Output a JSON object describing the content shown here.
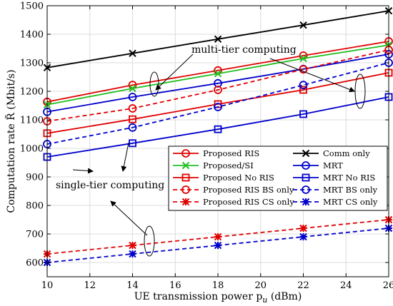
{
  "chart_data": {
    "type": "line",
    "title": "",
    "xlabel": "UE transmission power p",
    "xlabel_sub": "u",
    "xlabel_unit": " (dBm)",
    "ylabel": "Computation rate R̃ (Mbit/s)",
    "xlim": [
      10,
      26
    ],
    "ylim": [
      550,
      1500
    ],
    "x_ticks": [
      10,
      12,
      14,
      16,
      18,
      20,
      22,
      24,
      26
    ],
    "y_ticks": [
      600,
      700,
      800,
      900,
      1000,
      1100,
      1200,
      1300,
      1400,
      1500
    ],
    "grid": true,
    "legend_position": "lower-right-inside",
    "x": [
      10,
      14,
      18,
      22,
      26
    ],
    "series": [
      {
        "name": "Proposed RIS",
        "color": "#e00000",
        "dash": "solid",
        "marker": "circle",
        "values": [
          1163,
          1222,
          1273,
          1325,
          1375
        ]
      },
      {
        "name": "Comm only",
        "color": "#000000",
        "dash": "solid",
        "marker": "x",
        "values": [
          1283,
          1333,
          1383,
          1432,
          1482
        ]
      },
      {
        "name": "Proposed/SI",
        "color": "#22c022",
        "dash": "solid",
        "marker": "x",
        "values": [
          1153,
          1210,
          1262,
          1315,
          1362
        ]
      },
      {
        "name": "MRT",
        "color": "#0000cc",
        "dash": "solid",
        "marker": "circle",
        "values": [
          1128,
          1180,
          1228,
          1278,
          1330
        ]
      },
      {
        "name": "Proposed No RIS",
        "color": "#e00000",
        "dash": "solid",
        "marker": "square",
        "values": [
          1053,
          1102,
          1155,
          1205,
          1265
        ]
      },
      {
        "name": "MRT No RIS",
        "color": "#0000cc",
        "dash": "solid",
        "marker": "square",
        "values": [
          970,
          1018,
          1067,
          1120,
          1180
        ]
      },
      {
        "name": "Proposed RIS BS only",
        "color": "#e00000",
        "dash": "dashed",
        "marker": "circle",
        "values": [
          1095,
          1140,
          1205,
          1277,
          1345
        ]
      },
      {
        "name": "MRT BS only",
        "color": "#0000cc",
        "dash": "dashed",
        "marker": "circle",
        "values": [
          1015,
          1073,
          1145,
          1222,
          1300
        ]
      },
      {
        "name": "Proposed RIS CS only",
        "color": "#e00000",
        "dash": "dashed",
        "marker": "star",
        "values": [
          630,
          660,
          690,
          720,
          750
        ]
      },
      {
        "name": "MRT CS only",
        "color": "#0000cc",
        "dash": "dashed",
        "marker": "star",
        "values": [
          600,
          630,
          660,
          690,
          720
        ]
      }
    ],
    "annotations": [
      {
        "id": "multi",
        "text": "multi-tier computing"
      },
      {
        "id": "single",
        "text": "single-tier computing"
      }
    ]
  }
}
